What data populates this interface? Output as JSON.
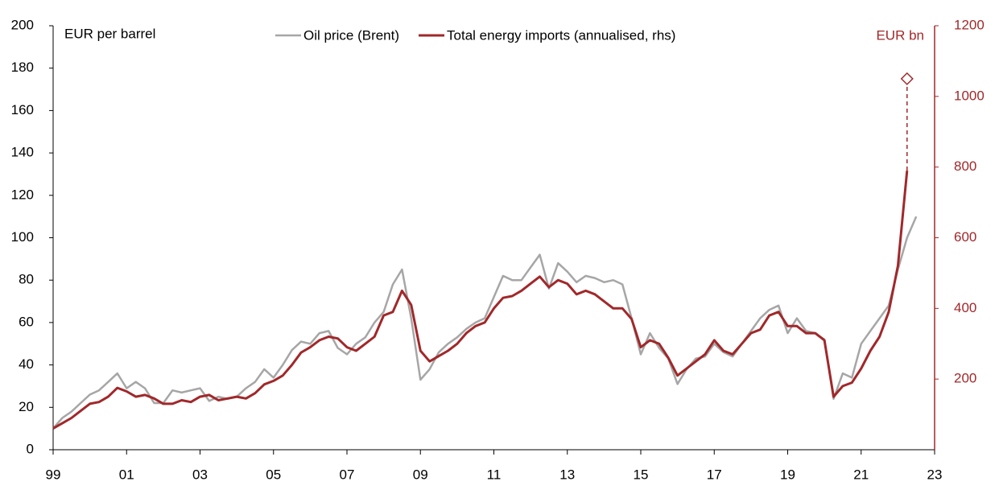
{
  "chart_data": {
    "type": "line",
    "y_label": "EUR per barrel",
    "y2_label": "EUR bn",
    "x": [
      1999,
      1999.25,
      1999.5,
      1999.75,
      2000,
      2000.25,
      2000.5,
      2000.75,
      2001,
      2001.25,
      2001.5,
      2001.75,
      2002,
      2002.25,
      2002.5,
      2002.75,
      2003,
      2003.25,
      2003.5,
      2003.75,
      2004,
      2004.25,
      2004.5,
      2004.75,
      2005,
      2005.25,
      2005.5,
      2005.75,
      2006,
      2006.25,
      2006.5,
      2006.75,
      2007,
      2007.25,
      2007.5,
      2007.75,
      2008,
      2008.25,
      2008.5,
      2008.75,
      2009,
      2009.25,
      2009.5,
      2009.75,
      2010,
      2010.25,
      2010.5,
      2010.75,
      2011,
      2011.25,
      2011.5,
      2011.75,
      2012,
      2012.25,
      2012.5,
      2012.75,
      2013,
      2013.25,
      2013.5,
      2013.75,
      2014,
      2014.25,
      2014.5,
      2014.75,
      2015,
      2015.25,
      2015.5,
      2015.75,
      2016,
      2016.25,
      2016.5,
      2016.75,
      2017,
      2017.25,
      2017.5,
      2017.75,
      2018,
      2018.25,
      2018.5,
      2018.75,
      2019,
      2019.25,
      2019.5,
      2019.75,
      2020,
      2020.25,
      2020.5,
      2020.75,
      2021,
      2021.25,
      2021.5,
      2021.75,
      2022,
      2022.25,
      2022.5
    ],
    "series": [
      {
        "name": "Oil price (Brent)",
        "color": "#a6a6a6",
        "axis": "y",
        "values": [
          10,
          15,
          18,
          22,
          26,
          28,
          32,
          36,
          29,
          32,
          29,
          22,
          22,
          28,
          27,
          28,
          29,
          23,
          25,
          24,
          25,
          29,
          32,
          38,
          34,
          40,
          47,
          51,
          50,
          55,
          56,
          48,
          45,
          50,
          53,
          60,
          65,
          78,
          85,
          62,
          33,
          38,
          46,
          50,
          53,
          57,
          60,
          62,
          72,
          82,
          80,
          80,
          86,
          92,
          76,
          88,
          84,
          79,
          82,
          81,
          79,
          80,
          78,
          62,
          45,
          55,
          48,
          43,
          31,
          38,
          43,
          44,
          50,
          46,
          44,
          50,
          56,
          62,
          66,
          68,
          55,
          62,
          56,
          55,
          52,
          24,
          36,
          34,
          50,
          56,
          62,
          68,
          85,
          100,
          110
        ]
      },
      {
        "name": "Total energy imports (annualised, rhs)",
        "color": "#a1282a",
        "axis": "y2",
        "values": [
          60,
          75,
          90,
          110,
          130,
          135,
          150,
          175,
          165,
          150,
          155,
          145,
          130,
          130,
          140,
          135,
          150,
          155,
          140,
          145,
          150,
          145,
          160,
          185,
          195,
          210,
          240,
          275,
          290,
          310,
          320,
          315,
          290,
          280,
          300,
          320,
          380,
          390,
          450,
          410,
          280,
          250,
          265,
          280,
          300,
          330,
          350,
          360,
          400,
          430,
          435,
          450,
          470,
          490,
          460,
          480,
          470,
          440,
          450,
          440,
          420,
          400,
          400,
          370,
          290,
          310,
          300,
          260,
          210,
          230,
          250,
          270,
          310,
          280,
          270,
          300,
          330,
          340,
          380,
          390,
          350,
          350,
          330,
          330,
          310,
          150,
          180,
          190,
          230,
          280,
          320,
          390,
          520,
          790,
          null
        ]
      }
    ],
    "marker": {
      "x": 2022.25,
      "value": 1050,
      "axis": "y2",
      "color": "#a1282a"
    },
    "xlim": [
      1999,
      2023
    ],
    "xticks": [
      {
        "value": 1999,
        "label": "99"
      },
      {
        "value": 2001,
        "label": "01"
      },
      {
        "value": 2003,
        "label": "03"
      },
      {
        "value": 2005,
        "label": "05"
      },
      {
        "value": 2007,
        "label": "07"
      },
      {
        "value": 2009,
        "label": "09"
      },
      {
        "value": 2011,
        "label": "11"
      },
      {
        "value": 2013,
        "label": "13"
      },
      {
        "value": 2015,
        "label": "15"
      },
      {
        "value": 2017,
        "label": "17"
      },
      {
        "value": 2019,
        "label": "19"
      },
      {
        "value": 2021,
        "label": "21"
      },
      {
        "value": 2023,
        "label": "23"
      }
    ],
    "ylim": [
      0,
      200
    ],
    "yticks": [
      0,
      20,
      40,
      60,
      80,
      100,
      120,
      140,
      160,
      180,
      200
    ],
    "y2lim": [
      0,
      1200
    ],
    "y2ticks": [
      200,
      400,
      600,
      800,
      1000,
      1200
    ],
    "grid": false
  }
}
